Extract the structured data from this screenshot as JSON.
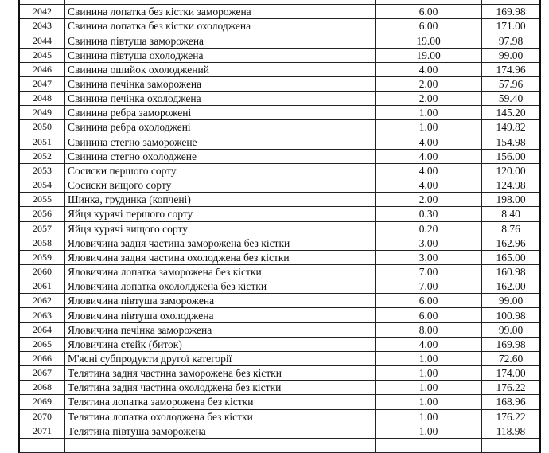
{
  "rows": [
    [
      "",
      "",
      "",
      ""
    ],
    [
      "2042",
      "Свинина лопатка без кістки заморожена",
      "6.00",
      "169.98"
    ],
    [
      "2043",
      "Свинина лопатка без кістки охолоджена",
      "6.00",
      "171.00"
    ],
    [
      "2044",
      "Свинина півтуша заморожена",
      "19.00",
      "97.98"
    ],
    [
      "2045",
      "Свинина півтуша охолоджена",
      "19.00",
      "99.00"
    ],
    [
      "2046",
      "Свинина ошийок охолоджений",
      "4.00",
      "174.96"
    ],
    [
      "2047",
      "Свинина печінка заморожена",
      "2.00",
      "57.96"
    ],
    [
      "2048",
      "Свинина печінка охолоджена",
      "2.00",
      "59.40"
    ],
    [
      "2049",
      "Свинина ребра заморожені",
      "1.00",
      "145.20"
    ],
    [
      "2050",
      "Свинина ребра охолоджені",
      "1.00",
      "149.82"
    ],
    [
      "2051",
      "Свинина стегно заморожене",
      "4.00",
      "154.98"
    ],
    [
      "2052",
      "Свинина стегно охолоджене",
      "4.00",
      "156.00"
    ],
    [
      "2053",
      "Сосиски першого сорту",
      "4.00",
      "120.00"
    ],
    [
      "2054",
      "Сосиски вищого сорту",
      "4.00",
      "124.98"
    ],
    [
      "2055",
      "Шинка, грудинка (копчені)",
      "2.00",
      "198.00"
    ],
    [
      "2056",
      "Яйця курячі першого сорту",
      "0.30",
      "8.40"
    ],
    [
      "2057",
      "Яйця курячі вищого сорту",
      "0.20",
      "8.76"
    ],
    [
      "2058",
      "Яловичина задня частина заморожена без кістки",
      "3.00",
      "162.96"
    ],
    [
      "2059",
      "Яловичина задня частина охолоджена без кістки",
      "3.00",
      "165.00"
    ],
    [
      "2060",
      "Яловичина лопатка заморожена без кістки",
      "7.00",
      "160.98"
    ],
    [
      "2061",
      "Яловичина лопатка охололджена без кістки",
      "7.00",
      "162.00"
    ],
    [
      "2062",
      "Яловичина пiвтуша заморожена",
      "6.00",
      "99.00"
    ],
    [
      "2063",
      "Яловичина півтуша охолоджена",
      "6.00",
      "100.98"
    ],
    [
      "2064",
      "Яловичина печінка заморожена",
      "8.00",
      "99.00"
    ],
    [
      "2065",
      "Яловичина стейк (биток)",
      "4.00",
      "169.98"
    ],
    [
      "2066",
      "М'ясні субпродукти другої категорії",
      "1.00",
      "72.60"
    ],
    [
      "2067",
      "Телятина задня частина заморожена без кістки",
      "1.00",
      "174.00"
    ],
    [
      "2068",
      "Телятина задня частина охолоджена без кістки",
      "1.00",
      "176.22"
    ],
    [
      "2069",
      "Телятина лопатка заморожена без кістки",
      "1.00",
      "168.96"
    ],
    [
      "2070",
      "Телятина лопатка охолоджена без кістки",
      "1.00",
      "176.22"
    ],
    [
      "2071",
      "Телятина півтуша заморожена",
      "1.00",
      "118.98"
    ],
    [
      "",
      "",
      "",
      ""
    ]
  ]
}
